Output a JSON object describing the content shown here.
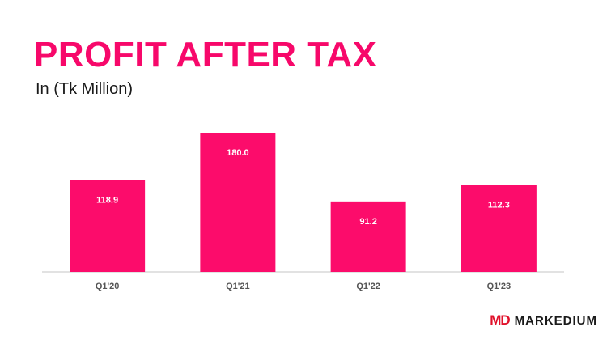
{
  "title": "PROFIT AFTER TAX",
  "subtitle": "In (Tk Million)",
  "brand": {
    "mark": "MD",
    "name": "MARKEDIUM"
  },
  "colors": {
    "accent": "#f7086a",
    "bar": "#fc0c6b",
    "axis": "#d9d9d9",
    "brand_red": "#e0102a"
  },
  "chart_data": {
    "type": "bar",
    "categories": [
      "Q1'20",
      "Q1'21",
      "Q1'22",
      "Q1'23"
    ],
    "values": [
      118.9,
      180.0,
      91.2,
      112.3
    ],
    "data_labels": [
      "118.9",
      "180.0",
      "91.2",
      "112.3"
    ],
    "ylim": [
      0,
      180
    ],
    "grid": false,
    "legend": "none"
  }
}
